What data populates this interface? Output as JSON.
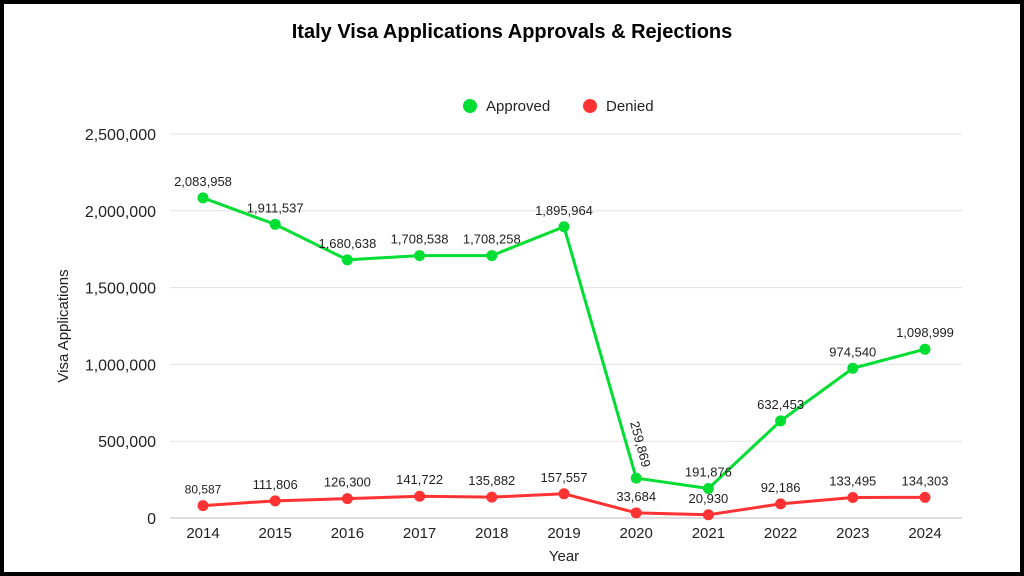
{
  "chart_data": {
    "type": "line",
    "title": "Italy Visa Applications Approvals & Rejections",
    "xlabel": "Year",
    "ylabel": "Visa Applications",
    "categories": [
      "2014",
      "2015",
      "2016",
      "2017",
      "2018",
      "2019",
      "2020",
      "2021",
      "2022",
      "2023",
      "2024"
    ],
    "ylim": [
      0,
      2500000
    ],
    "yticks": [
      "0",
      "500,000",
      "1,000,000",
      "1,500,000",
      "2,000,000",
      "2,500,000"
    ],
    "grid": true,
    "legend_position": "top",
    "series": [
      {
        "name": "Approved",
        "color": "#00dd33",
        "values": [
          2083958,
          1911537,
          1680638,
          1708538,
          1708258,
          1895964,
          259869,
          191876,
          632453,
          974540,
          1098999
        ],
        "labels": [
          "2,083,958",
          "1,911,537",
          "1,680,638",
          "1,708,538",
          "1,708,258",
          "1,895,964",
          "259,869",
          "191,876",
          "632,453",
          "974,540",
          "1,098,999"
        ]
      },
      {
        "name": "Denied",
        "color": "#ff3333",
        "values": [
          80587,
          111806,
          126300,
          141722,
          135882,
          157557,
          33684,
          20930,
          92186,
          133495,
          134303
        ],
        "labels": [
          "80,587",
          "111,806",
          "126,300",
          "141,722",
          "135,882",
          "157,557",
          "33,684",
          "20,930",
          "92,186",
          "133,495",
          "134,303"
        ]
      }
    ]
  }
}
